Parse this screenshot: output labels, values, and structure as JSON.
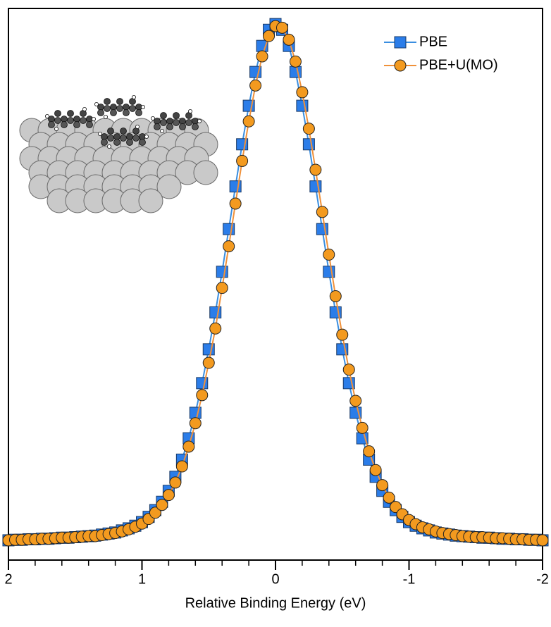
{
  "chart_data": {
    "type": "line",
    "xlabel": "Relative Binding Energy (eV)",
    "xlim": [
      2,
      -2
    ],
    "ylim": [
      -0.03,
      1.03
    ],
    "xticks": [
      2,
      1,
      0,
      -1,
      -2
    ],
    "legend": "upper right",
    "x": [
      2,
      1.95,
      1.9,
      1.85,
      1.8,
      1.75,
      1.7,
      1.65,
      1.6,
      1.55,
      1.5,
      1.45,
      1.4,
      1.35,
      1.3,
      1.25,
      1.2,
      1.15,
      1.1,
      1.05,
      1,
      0.95,
      0.9,
      0.85,
      0.8,
      0.75,
      0.7,
      0.65,
      0.6,
      0.55,
      0.5,
      0.45,
      0.4,
      0.35,
      0.3,
      0.25,
      0.2,
      0.15,
      0.1,
      0.05,
      0,
      -0.05,
      -0.1,
      -0.15,
      -0.2,
      -0.25,
      -0.3,
      -0.35,
      -0.4,
      -0.45,
      -0.5,
      -0.55,
      -0.6,
      -0.65,
      -0.7,
      -0.75,
      -0.8,
      -0.85,
      -0.9,
      -0.95,
      -1,
      -1.05,
      -1.1,
      -1.15,
      -1.2,
      -1.25,
      -1.3,
      -1.35,
      -1.4,
      -1.45,
      -1.5,
      -1.55,
      -1.6,
      -1.65,
      -1.7,
      -1.75,
      -1.8,
      -1.85,
      -1.9,
      -1.95,
      -2
    ],
    "series": [
      {
        "name": "PBE",
        "color": "#2b7de9",
        "line_color": "#3a8ee0",
        "marker": "square",
        "values": [
          0.008,
          0.009,
          0.009,
          0.01,
          0.01,
          0.011,
          0.011,
          0.012,
          0.013,
          0.013,
          0.014,
          0.015,
          0.016,
          0.017,
          0.019,
          0.021,
          0.023,
          0.027,
          0.031,
          0.036,
          0.043,
          0.053,
          0.066,
          0.082,
          0.103,
          0.13,
          0.163,
          0.204,
          0.253,
          0.31,
          0.375,
          0.446,
          0.524,
          0.606,
          0.688,
          0.769,
          0.843,
          0.908,
          0.958,
          0.989,
          1,
          0.989,
          0.958,
          0.908,
          0.843,
          0.769,
          0.688,
          0.606,
          0.524,
          0.446,
          0.375,
          0.31,
          0.253,
          0.204,
          0.163,
          0.13,
          0.103,
          0.082,
          0.066,
          0.053,
          0.043,
          0.036,
          0.031,
          0.027,
          0.023,
          0.021,
          0.019,
          0.017,
          0.016,
          0.015,
          0.014,
          0.013,
          0.013,
          0.012,
          0.011,
          0.011,
          0.01,
          0.01,
          0.009,
          0.009,
          0.008
        ]
      },
      {
        "name": "PBE+U(MO)",
        "color": "#f39a1f",
        "line_color": "#f0913a",
        "marker": "circle",
        "values": [
          0.008,
          0.009,
          0.009,
          0.01,
          0.01,
          0.011,
          0.011,
          0.012,
          0.013,
          0.013,
          0.014,
          0.015,
          0.016,
          0.016,
          0.018,
          0.02,
          0.022,
          0.025,
          0.029,
          0.034,
          0.04,
          0.049,
          0.061,
          0.076,
          0.095,
          0.119,
          0.15,
          0.188,
          0.233,
          0.287,
          0.349,
          0.415,
          0.493,
          0.573,
          0.655,
          0.737,
          0.813,
          0.882,
          0.938,
          0.977,
          0.996,
          0.993,
          0.97,
          0.928,
          0.869,
          0.799,
          0.72,
          0.639,
          0.557,
          0.477,
          0.403,
          0.336,
          0.276,
          0.224,
          0.179,
          0.143,
          0.114,
          0.09,
          0.072,
          0.058,
          0.047,
          0.039,
          0.033,
          0.029,
          0.025,
          0.022,
          0.02,
          0.018,
          0.016,
          0.015,
          0.014,
          0.014,
          0.013,
          0.012,
          0.012,
          0.011,
          0.01,
          0.01,
          0.009,
          0.009,
          0.008
        ]
      }
    ]
  }
}
